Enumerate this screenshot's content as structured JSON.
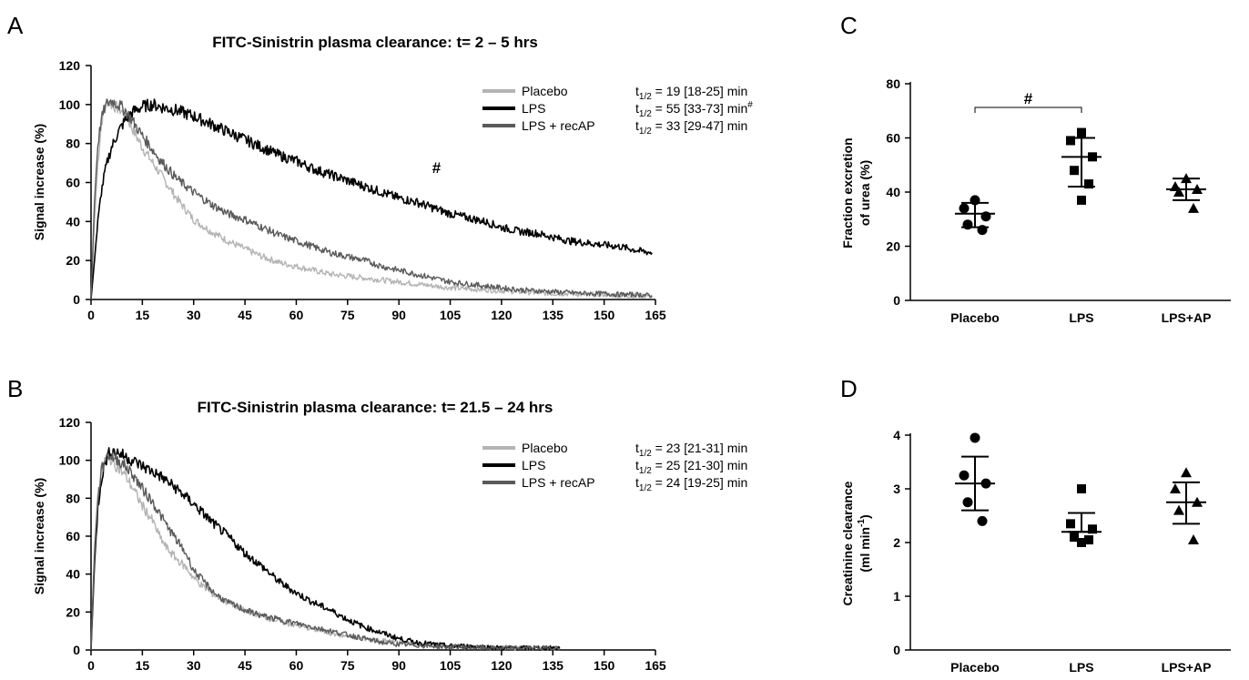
{
  "colors": {
    "Placebo": "#b4b4b4",
    "LPS": "#000000",
    "LPS + recAP": "#5a5a5a"
  },
  "chart_data": [
    {
      "panel": "A",
      "type": "line",
      "title": "FITC-Sinistrin plasma clearance: t= 2 – 5 hrs",
      "xlabel": "",
      "ylabel": "Signal increase (%)",
      "xlim": [
        0,
        165
      ],
      "ylim": [
        0,
        120
      ],
      "xticks": [
        "0",
        "15",
        "30",
        "45",
        "60",
        "75",
        "90",
        "105",
        "120",
        "135",
        "150",
        "165"
      ],
      "yticks": [
        "0",
        "20",
        "40",
        "60",
        "80",
        "100",
        "120"
      ],
      "legend_position": "top-right",
      "series": [
        {
          "name": "Placebo",
          "color_key": "Placebo",
          "halflife_value": "19 [18-25] min",
          "x": [
            0,
            1,
            2,
            3,
            4,
            5,
            6,
            8,
            10,
            12,
            15,
            20,
            25,
            30,
            35,
            40,
            45,
            50,
            55,
            60,
            65,
            70,
            75,
            80,
            85,
            90,
            95,
            100,
            105,
            110,
            115,
            120,
            125,
            130,
            135,
            140,
            145,
            150,
            155,
            160,
            164
          ],
          "y": [
            0,
            40,
            70,
            90,
            100,
            102,
            100,
            98,
            95,
            88,
            78,
            65,
            52,
            41,
            35,
            30,
            26,
            22,
            19,
            17,
            15,
            13,
            12,
            11,
            10,
            9,
            8,
            7,
            6,
            5.5,
            5,
            4.5,
            4,
            3.5,
            3,
            3,
            2.5,
            2.5,
            2,
            2,
            2
          ]
        },
        {
          "name": "LPS",
          "color_key": "LPS",
          "halflife_value": "55 [33-73] min",
          "superscript": "#",
          "x": [
            0,
            1,
            2,
            3,
            4,
            5,
            6,
            8,
            10,
            12,
            15,
            18,
            20,
            25,
            30,
            35,
            40,
            45,
            50,
            55,
            60,
            65,
            70,
            75,
            80,
            85,
            90,
            95,
            100,
            105,
            110,
            115,
            120,
            125,
            130,
            135,
            140,
            145,
            150,
            155,
            160,
            164
          ],
          "y": [
            0,
            20,
            40,
            55,
            65,
            72,
            78,
            86,
            92,
            96,
            99,
            100,
            99,
            97,
            94,
            90,
            86,
            82,
            78,
            74,
            71,
            67,
            64,
            61,
            58,
            55,
            52,
            50,
            47,
            44,
            42,
            40,
            37,
            35,
            34,
            32,
            30,
            29,
            28,
            27,
            25,
            24
          ]
        },
        {
          "name": "LPS + recAP",
          "color_key": "LPS + recAP",
          "halflife_value": "33 [29-47] min",
          "x": [
            0,
            1,
            2,
            3,
            4,
            5,
            6,
            8,
            10,
            12,
            15,
            20,
            25,
            30,
            35,
            40,
            45,
            50,
            55,
            60,
            65,
            70,
            75,
            80,
            85,
            90,
            95,
            100,
            105,
            110,
            115,
            120,
            125,
            130,
            135,
            140,
            145,
            150,
            155,
            160,
            164
          ],
          "y": [
            0,
            50,
            80,
            92,
            98,
            101,
            102,
            100,
            97,
            92,
            84,
            72,
            62,
            55,
            49,
            44,
            41,
            37,
            33,
            30,
            27,
            24,
            22,
            20,
            17,
            15,
            13,
            11,
            9,
            8,
            7,
            6,
            5,
            4.5,
            4,
            3.5,
            3,
            3,
            2.5,
            2.5,
            2
          ]
        }
      ],
      "annotations": [
        {
          "text": "#",
          "x": 101,
          "y": 65
        }
      ]
    },
    {
      "panel": "B",
      "type": "line",
      "title": "FITC-Sinistrin plasma clearance: t= 21.5 – 24 hrs",
      "xlabel": "",
      "ylabel": "Signal increase (%)",
      "xlim": [
        0,
        165
      ],
      "ylim": [
        0,
        120
      ],
      "xticks": [
        "0",
        "15",
        "30",
        "45",
        "60",
        "75",
        "90",
        "105",
        "120",
        "135",
        "150",
        "165"
      ],
      "yticks": [
        "0",
        "20",
        "40",
        "60",
        "80",
        "100",
        "120"
      ],
      "legend_position": "top-right",
      "series": [
        {
          "name": "Placebo",
          "color_key": "Placebo",
          "halflife_value": "23 [21-31] min",
          "x": [
            0,
            1,
            2,
            3,
            4,
            5,
            6,
            8,
            10,
            12,
            15,
            18,
            20,
            22,
            25,
            28,
            30,
            33,
            36,
            40,
            45,
            50,
            55,
            60,
            65,
            70,
            75,
            80,
            85,
            90,
            95,
            100,
            105,
            110,
            115,
            120,
            125,
            130,
            135,
            137
          ],
          "y": [
            0,
            55,
            82,
            95,
            100,
            102,
            100,
            96,
            92,
            86,
            76,
            68,
            60,
            54,
            48,
            43,
            38,
            33,
            29,
            25,
            21,
            18,
            15,
            13,
            11,
            9,
            7,
            6,
            5,
            4,
            3,
            2.5,
            2,
            2,
            1.5,
            1.5,
            1,
            1,
            1,
            1
          ]
        },
        {
          "name": "LPS",
          "color_key": "LPS",
          "halflife_value": "25 [21-30] min",
          "x": [
            0,
            1,
            2,
            3,
            4,
            5,
            6,
            8,
            10,
            12,
            15,
            20,
            25,
            30,
            35,
            40,
            45,
            50,
            55,
            60,
            65,
            70,
            75,
            80,
            85,
            90,
            95,
            100,
            105,
            110,
            115,
            120,
            125,
            130,
            135,
            137
          ],
          "y": [
            0,
            45,
            75,
            90,
            98,
            103,
            105,
            104,
            102,
            100,
            97,
            92,
            85,
            77,
            68,
            60,
            51,
            44,
            36,
            30,
            25,
            21,
            16,
            12,
            9,
            6,
            4,
            3,
            2,
            2,
            1.5,
            1,
            1,
            1,
            1,
            1
          ]
        },
        {
          "name": "LPS + recAP",
          "color_key": "LPS + recAP",
          "halflife_value": "24 [19-25] min",
          "x": [
            0,
            1,
            2,
            3,
            4,
            5,
            6,
            8,
            10,
            12,
            15,
            18,
            20,
            22,
            25,
            28,
            30,
            33,
            36,
            40,
            45,
            50,
            55,
            60,
            65,
            70,
            75,
            80,
            85,
            90,
            95,
            100,
            105,
            110,
            115,
            120,
            125,
            130,
            135,
            137
          ],
          "y": [
            0,
            50,
            80,
            94,
            100,
            103,
            102,
            100,
            97,
            93,
            85,
            78,
            72,
            66,
            58,
            50,
            42,
            36,
            30,
            25,
            21,
            18,
            16,
            14,
            12,
            10,
            8,
            6,
            4,
            3,
            2.5,
            2,
            1.5,
            1.5,
            1,
            1,
            1,
            1,
            1,
            1
          ]
        }
      ]
    },
    {
      "panel": "C",
      "type": "scatter",
      "title": "",
      "xlabel": "",
      "ylabel_line1": "Fraction excretion",
      "ylabel_line2": "of urea (%)",
      "categories": [
        "Placebo",
        "LPS",
        "LPS+AP"
      ],
      "ylim": [
        0,
        80
      ],
      "yticks": [
        "0",
        "20",
        "40",
        "60",
        "80"
      ],
      "groups": [
        {
          "name": "Placebo",
          "marker": "circle",
          "points": [
            37,
            34,
            31,
            28,
            26
          ],
          "mean": 32,
          "sd_low": 27,
          "sd_high": 36
        },
        {
          "name": "LPS",
          "marker": "square",
          "points": [
            62,
            59,
            53,
            48,
            43,
            37
          ],
          "mean": 53,
          "sd_low": 42,
          "sd_high": 60
        },
        {
          "name": "LPS+AP",
          "marker": "triangle",
          "points": [
            45,
            42,
            41,
            40,
            34
          ],
          "mean": 41,
          "sd_low": 37,
          "sd_high": 45
        }
      ],
      "comparison": {
        "text": "#",
        "from": "Placebo",
        "to": "LPS",
        "y": 78
      }
    },
    {
      "panel": "D",
      "type": "scatter",
      "title": "",
      "xlabel": "",
      "ylabel_line1": "Creatinine clearance",
      "ylabel_line2": "(ml min",
      "ylabel_sup": "-1",
      "ylabel_close": ")",
      "categories": [
        "Placebo",
        "LPS",
        "LPS+AP"
      ],
      "ylim": [
        0,
        4
      ],
      "yticks": [
        "0",
        "1",
        "2",
        "3",
        "4"
      ],
      "groups": [
        {
          "name": "Placebo",
          "marker": "circle",
          "points": [
            3.95,
            3.25,
            3.1,
            2.75,
            2.4
          ],
          "mean": 3.1,
          "sd_low": 2.6,
          "sd_high": 3.6
        },
        {
          "name": "LPS",
          "marker": "square",
          "points": [
            3.0,
            2.35,
            2.25,
            2.1,
            2.05,
            2.0
          ],
          "mean": 2.2,
          "sd_low": 2.2,
          "sd_high": 2.55
        },
        {
          "name": "LPS+AP",
          "marker": "triangle",
          "points": [
            3.3,
            3.0,
            2.75,
            2.6,
            2.05
          ],
          "mean": 2.75,
          "sd_low": 2.35,
          "sd_high": 3.12
        }
      ]
    }
  ]
}
